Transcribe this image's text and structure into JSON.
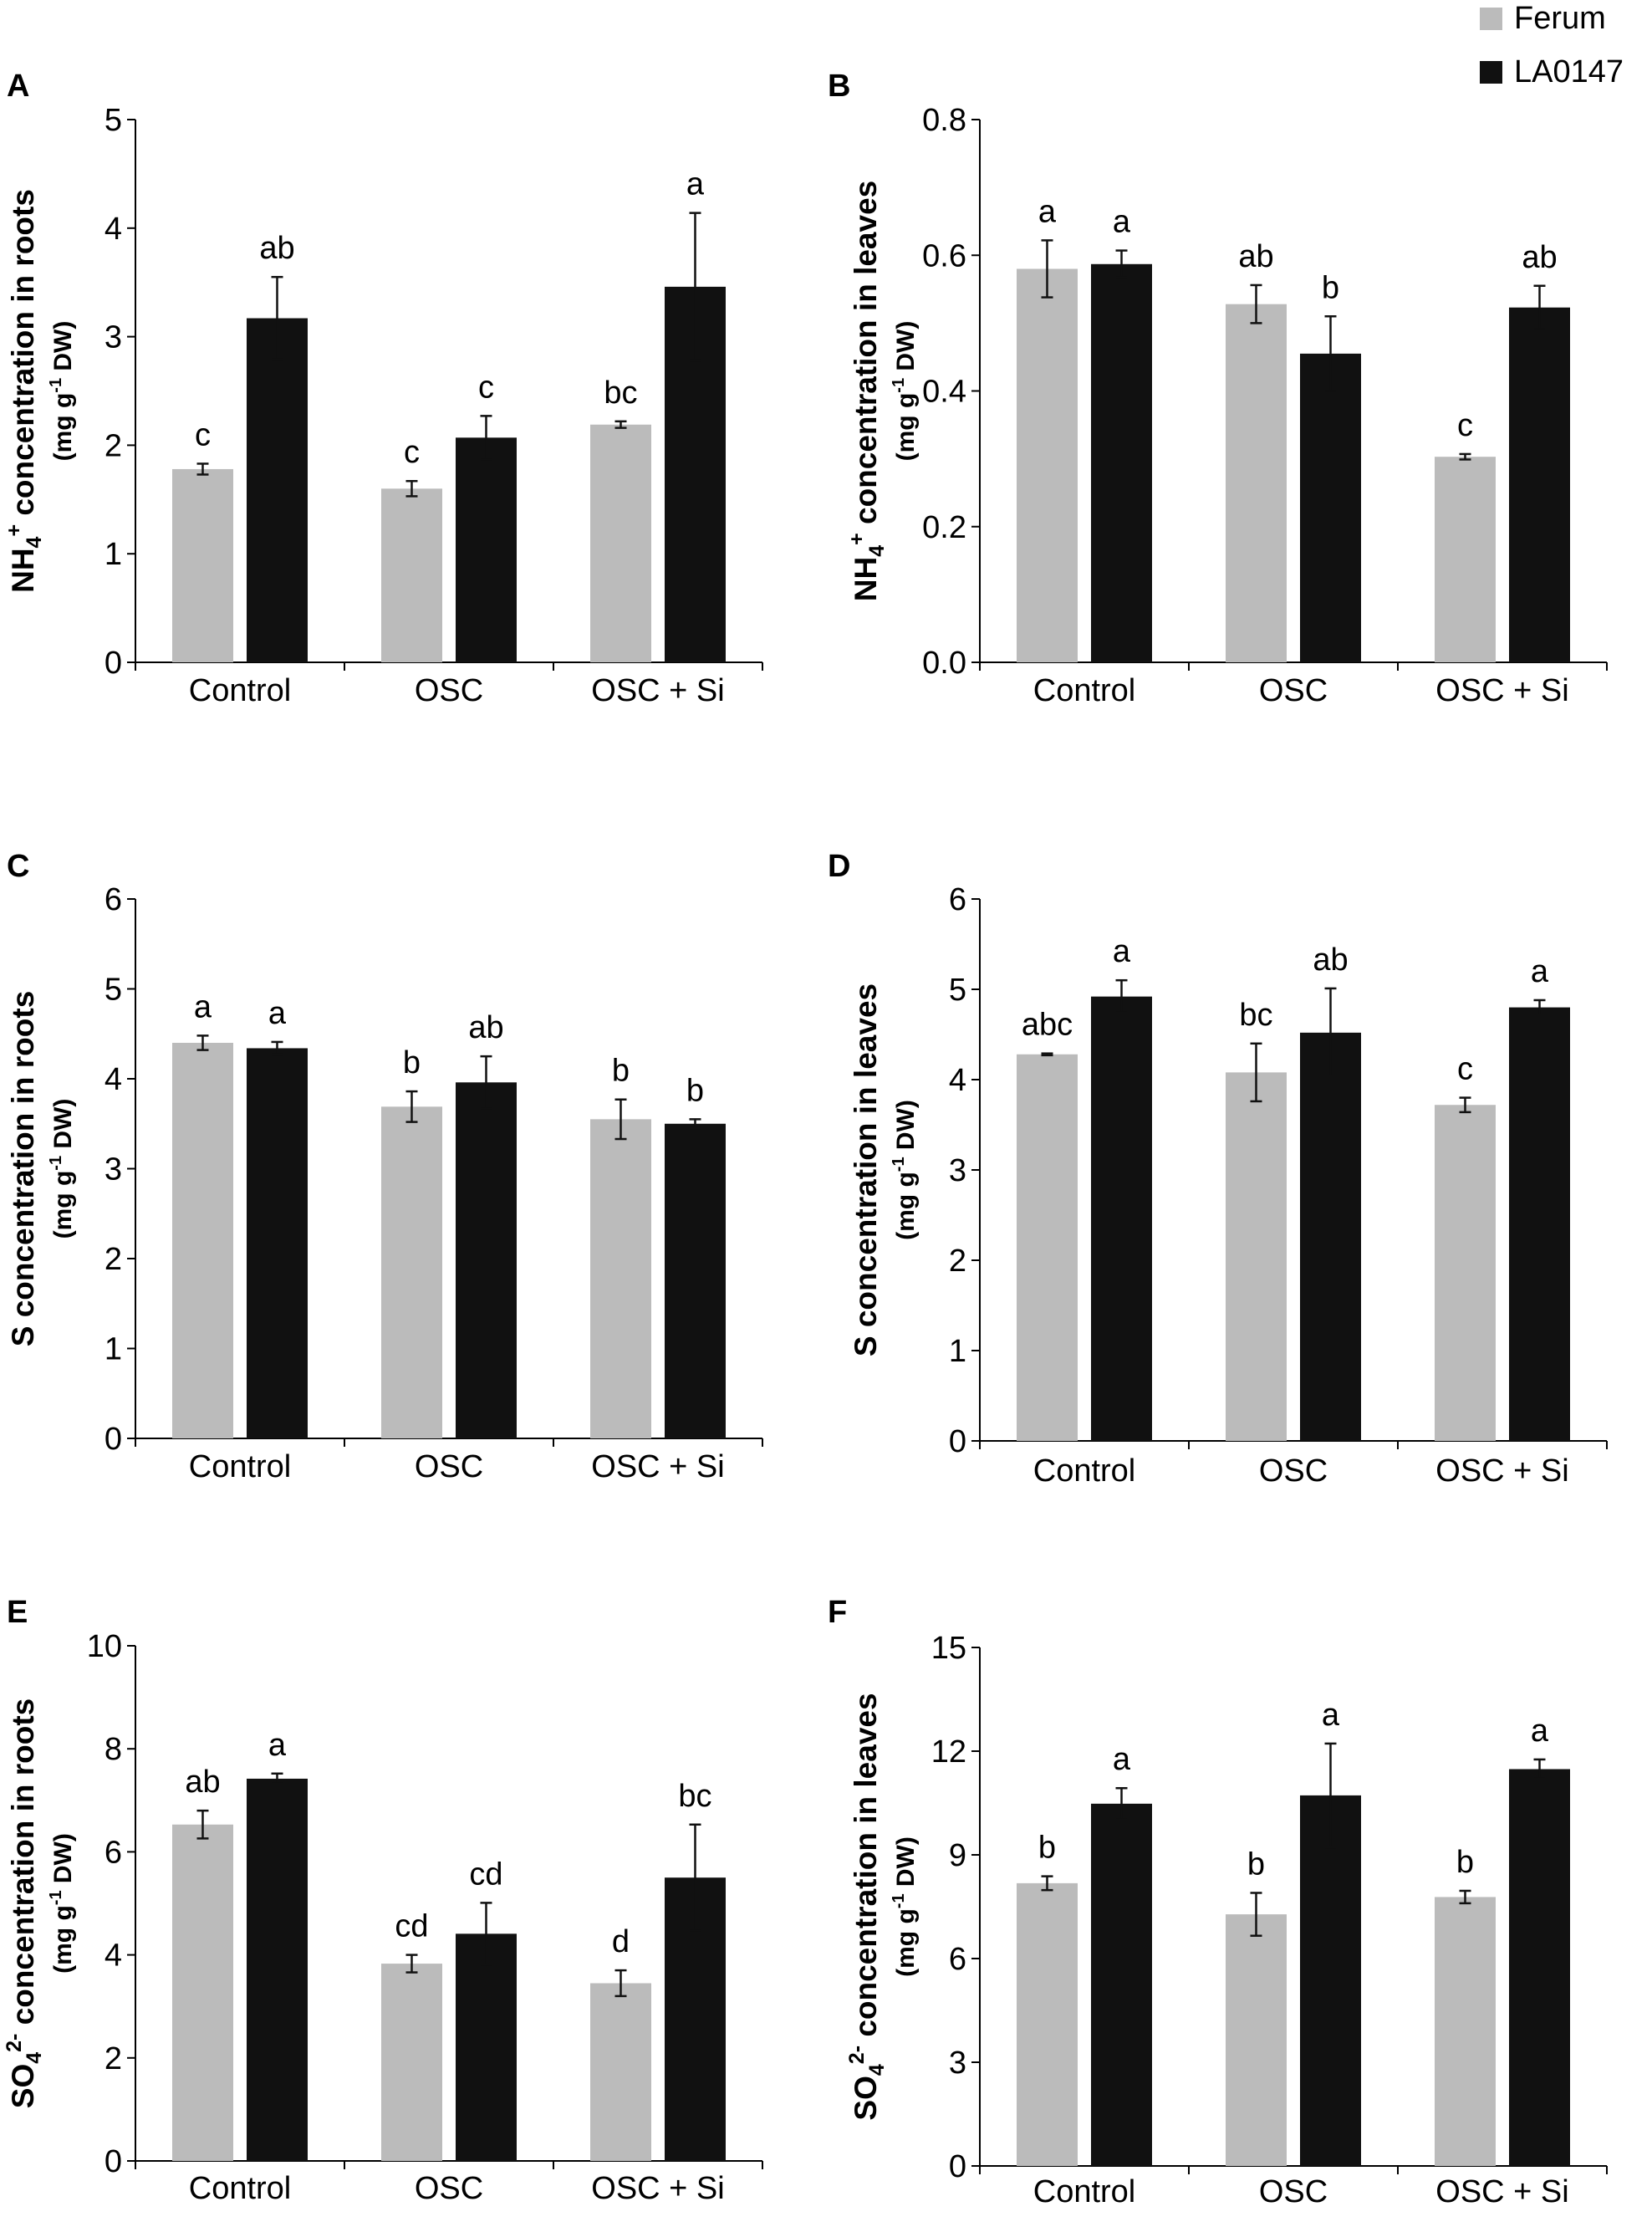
{
  "legend": {
    "series": [
      {
        "name": "Ferum",
        "color": "#bbbbbb"
      },
      {
        "name": "LA0147",
        "color": "#111111"
      }
    ]
  },
  "chart_data": [
    {
      "type": "bar",
      "panel": "A",
      "ylabel": "NH4+ concentration in roots",
      "ylabel_parts": {
        "chem": "NH",
        "sub": "4",
        "sup": "+",
        "rest": " concentration in roots"
      },
      "yunits": {
        "pre": "(mg g",
        "sup": "-1",
        "post": " DW)"
      },
      "categories": [
        "Control",
        "OSC",
        "OSC + Si"
      ],
      "ylim": [
        0,
        5
      ],
      "yticks": [
        "0",
        "1",
        "2",
        "3",
        "4",
        "5"
      ],
      "series": [
        {
          "name": "Ferum",
          "values": [
            1.78,
            1.6,
            2.19
          ],
          "errors": [
            0.05,
            0.07,
            0.03
          ],
          "letters": [
            "c",
            "c",
            "bc"
          ]
        },
        {
          "name": "LA0147",
          "values": [
            3.17,
            2.07,
            3.46
          ],
          "errors": [
            0.38,
            0.2,
            0.68
          ],
          "letters": [
            "ab",
            "c",
            "a"
          ]
        }
      ]
    },
    {
      "type": "bar",
      "panel": "B",
      "ylabel": "NH4+ concentration in leaves",
      "ylabel_parts": {
        "chem": "NH",
        "sub": "4",
        "sup": "+",
        "rest": " concentration in leaves"
      },
      "yunits": {
        "pre": "(mg g",
        "sup": "-1",
        "post": " DW)"
      },
      "categories": [
        "Control",
        "OSC",
        "OSC + Si"
      ],
      "ylim": [
        0,
        0.8
      ],
      "yticks": [
        "0.0",
        "0.2",
        "0.4",
        "0.6",
        "0.8"
      ],
      "series": [
        {
          "name": "Ferum",
          "values": [
            0.58,
            0.528,
            0.303
          ],
          "errors": [
            0.042,
            0.028,
            0.004
          ],
          "letters": [
            "a",
            "ab",
            "c"
          ]
        },
        {
          "name": "LA0147",
          "values": [
            0.587,
            0.455,
            0.523
          ],
          "errors": [
            0.02,
            0.055,
            0.032
          ],
          "letters": [
            "a",
            "b",
            "ab"
          ]
        }
      ]
    },
    {
      "type": "bar",
      "panel": "C",
      "ylabel": "S concentration in roots",
      "ylabel_parts": {
        "chem": "S",
        "sub": "",
        "sup": "",
        "rest": " concentration in roots"
      },
      "yunits": {
        "pre": "(mg g",
        "sup": "-1",
        "post": " DW)"
      },
      "categories": [
        "Control",
        "OSC",
        "OSC + Si"
      ],
      "ylim": [
        0,
        6
      ],
      "yticks": [
        "0",
        "1",
        "2",
        "3",
        "4",
        "5",
        "6"
      ],
      "series": [
        {
          "name": "Ferum",
          "values": [
            4.4,
            3.69,
            3.55
          ],
          "errors": [
            0.08,
            0.17,
            0.22
          ],
          "letters": [
            "a",
            "b",
            "b"
          ]
        },
        {
          "name": "LA0147",
          "values": [
            4.34,
            3.96,
            3.5
          ],
          "errors": [
            0.07,
            0.29,
            0.05
          ],
          "letters": [
            "a",
            "ab",
            "b"
          ]
        }
      ]
    },
    {
      "type": "bar",
      "panel": "D",
      "ylabel": "S concentration in leaves",
      "ylabel_parts": {
        "chem": "S",
        "sub": "",
        "sup": "",
        "rest": " concentration in leaves"
      },
      "yunits": {
        "pre": "(mg g",
        "sup": "-1",
        "post": " DW)"
      },
      "categories": [
        "Control",
        "OSC",
        "OSC + Si"
      ],
      "ylim": [
        0,
        6
      ],
      "yticks": [
        "0",
        "1",
        "2",
        "3",
        "4",
        "5",
        "6"
      ],
      "series": [
        {
          "name": "Ferum",
          "values": [
            4.28,
            4.08,
            3.72
          ],
          "errors": [
            0.01,
            0.32,
            0.08
          ],
          "letters": [
            "abc",
            "bc",
            "c"
          ]
        },
        {
          "name": "LA0147",
          "values": [
            4.92,
            4.52,
            4.8
          ],
          "errors": [
            0.18,
            0.49,
            0.08
          ],
          "letters": [
            "a",
            "ab",
            "a"
          ]
        }
      ]
    },
    {
      "type": "bar",
      "panel": "E",
      "ylabel": "SO42- concentration in roots",
      "ylabel_parts": {
        "chem": "SO",
        "sub": "4",
        "sup": "2-",
        "rest": " concentration in roots"
      },
      "yunits": {
        "pre": "(mg g",
        "sup": "-1",
        "post": " DW)"
      },
      "categories": [
        "Control",
        "OSC",
        "OSC + Si"
      ],
      "ylim": [
        0,
        10
      ],
      "yticks": [
        "0",
        "2",
        "4",
        "6",
        "8",
        "10"
      ],
      "series": [
        {
          "name": "Ferum",
          "values": [
            6.53,
            3.83,
            3.45
          ],
          "errors": [
            0.27,
            0.17,
            0.25
          ],
          "letters": [
            "ab",
            "cd",
            "d"
          ]
        },
        {
          "name": "LA0147",
          "values": [
            7.42,
            4.41,
            5.5
          ],
          "errors": [
            0.1,
            0.6,
            1.03
          ],
          "letters": [
            "a",
            "cd",
            "bc"
          ]
        }
      ]
    },
    {
      "type": "bar",
      "panel": "F",
      "ylabel": "SO42- concentration in leaves",
      "ylabel_parts": {
        "chem": "SO",
        "sub": "4",
        "sup": "2-",
        "rest": " concentration in leaves"
      },
      "yunits": {
        "pre": "(mg g",
        "sup": "-1",
        "post": " DW)"
      },
      "categories": [
        "Control",
        "OSC",
        "OSC + Si"
      ],
      "ylim": [
        0,
        15
      ],
      "yticks": [
        "0",
        "3",
        "6",
        "9",
        "12",
        "15"
      ],
      "series": [
        {
          "name": "Ferum",
          "values": [
            8.18,
            7.28,
            7.78
          ],
          "errors": [
            0.2,
            0.62,
            0.18
          ],
          "letters": [
            "b",
            "b",
            "b"
          ]
        },
        {
          "name": "LA0147",
          "values": [
            10.48,
            10.72,
            11.48
          ],
          "errors": [
            0.45,
            1.5,
            0.28
          ],
          "letters": [
            "a",
            "a",
            "a"
          ]
        }
      ]
    }
  ]
}
